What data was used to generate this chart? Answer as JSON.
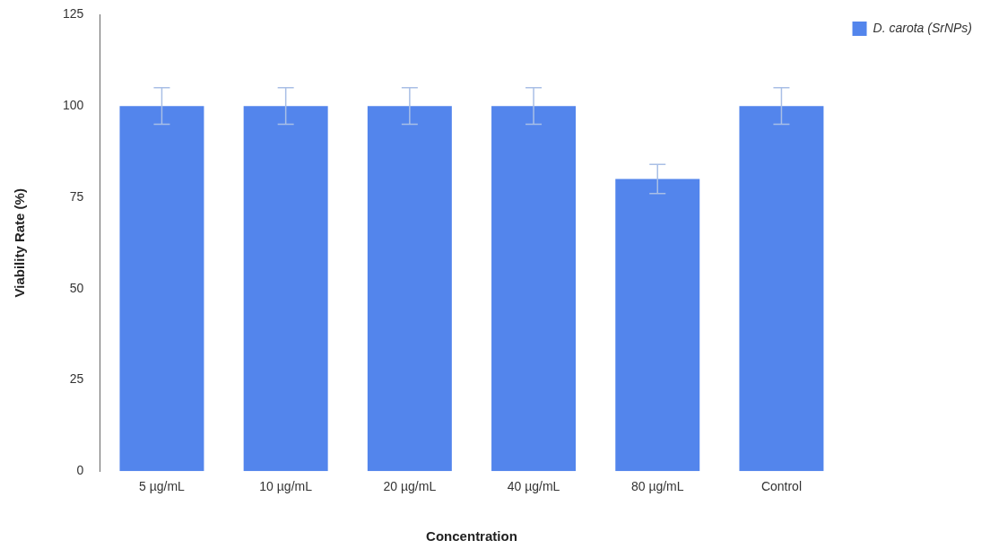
{
  "chart_data": {
    "type": "bar",
    "xlabel": "Concentration",
    "ylabel": "Viability Rate (%)",
    "categories": [
      "5 µg/mL",
      "10 µg/mL",
      "20 µg/mL",
      "40 µg/mL",
      "80 µg/mL",
      "Control"
    ],
    "series": [
      {
        "name": "D. carota (SrNPs)",
        "color": "#5385ec",
        "values": [
          100,
          100,
          100,
          100,
          80,
          100
        ],
        "errors": [
          5,
          5,
          5,
          5,
          4,
          5
        ]
      }
    ],
    "ylim": [
      0,
      125
    ],
    "yticks": [
      0,
      25,
      50,
      75,
      100,
      125
    ],
    "grid": false,
    "legend": "top right"
  }
}
